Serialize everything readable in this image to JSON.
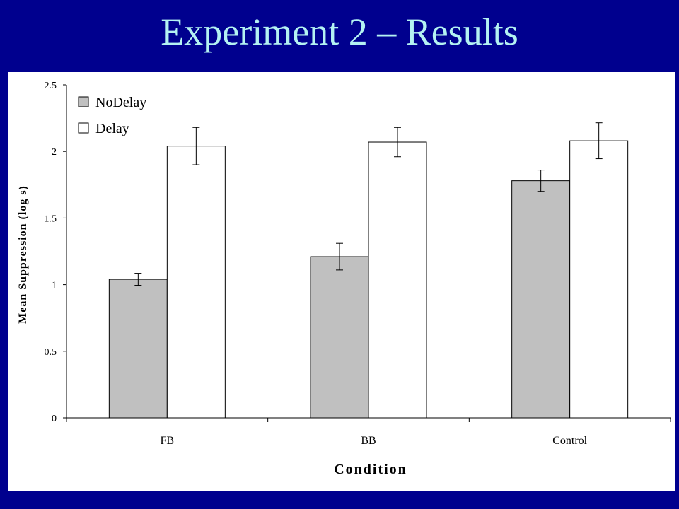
{
  "slide": {
    "title": "Experiment 2 – Results"
  },
  "colors": {
    "background": "#00008e",
    "title": "#b4f2f2",
    "nodelay_fill": "#c0c0c0",
    "delay_fill": "#ffffff"
  },
  "chart_data": {
    "type": "bar",
    "xlabel": "Condition",
    "ylabel": "Mean Suppression (log s)",
    "ylim": [
      0,
      2.5
    ],
    "yticks": [
      "0",
      "0.5",
      "1",
      "1.5",
      "2",
      "2.5"
    ],
    "ytick_values": [
      0,
      0.5,
      1,
      1.5,
      2,
      2.5
    ],
    "categories": [
      "FB",
      "BB",
      "Control"
    ],
    "legend_position": "top-left",
    "series": [
      {
        "name": "NoDelay",
        "values": [
          1.04,
          1.21,
          1.78
        ],
        "errors": [
          0.045,
          0.1,
          0.08
        ]
      },
      {
        "name": "Delay",
        "values": [
          2.04,
          2.07,
          2.08
        ],
        "errors": [
          0.14,
          0.11,
          0.135
        ]
      }
    ]
  }
}
